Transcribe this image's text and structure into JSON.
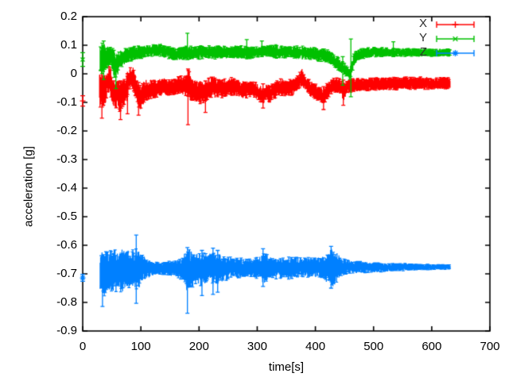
{
  "figure": {
    "background": "#ffffff",
    "frame_color": "#000000"
  },
  "chart_data": {
    "type": "scatter",
    "style": "errorbars",
    "title": "",
    "xlabel": "time[s]",
    "ylabel": "acceleration [g]",
    "xlim": [
      0,
      700
    ],
    "ylim": [
      -0.9,
      0.2
    ],
    "xticks": [
      0,
      100,
      200,
      300,
      400,
      500,
      600,
      700
    ],
    "xtick_labels": [
      "0",
      "100",
      "200",
      "300",
      "400",
      "500",
      "600",
      "700"
    ],
    "yticks": [
      0.2,
      0.1,
      0,
      -0.1,
      -0.2,
      -0.3,
      -0.4,
      -0.5,
      -0.6,
      -0.7,
      -0.8,
      -0.9
    ],
    "ytick_labels": [
      "0.2",
      "0.1",
      "0",
      "-0.1",
      "-0.2",
      "-0.3",
      "-0.4",
      "-0.5",
      "-0.6",
      "-0.7",
      "-0.8",
      "-0.9"
    ],
    "grid": false,
    "legend": {
      "position": "inside-top-right"
    },
    "series": [
      {
        "name": "X",
        "color": "#ff0000",
        "marker": "plus",
        "start_point": {
          "t": 0,
          "value": -0.095,
          "err": 0.018
        },
        "envelope": [
          [
            29,
            -0.12,
            0.0
          ],
          [
            33,
            -0.13,
            0.01
          ],
          [
            38,
            -0.12,
            -0.005
          ],
          [
            43,
            -0.065,
            0.03
          ],
          [
            47,
            -0.08,
            0.033
          ],
          [
            51,
            -0.115,
            -0.01
          ],
          [
            56,
            -0.13,
            -0.02
          ],
          [
            60,
            -0.12,
            -0.012
          ],
          [
            65,
            -0.14,
            -0.03
          ],
          [
            70,
            -0.12,
            -0.02
          ],
          [
            75,
            -0.1,
            -0.002
          ],
          [
            80,
            -0.062,
            0.028
          ],
          [
            86,
            -0.052,
            0.033
          ],
          [
            91,
            -0.09,
            -0.002
          ],
          [
            96,
            -0.12,
            -0.03
          ],
          [
            100,
            -0.128,
            -0.04
          ],
          [
            106,
            -0.1,
            -0.022
          ],
          [
            113,
            -0.09,
            -0.02
          ],
          [
            121,
            -0.086,
            -0.02
          ],
          [
            130,
            -0.08,
            -0.018
          ],
          [
            140,
            -0.076,
            -0.015
          ],
          [
            150,
            -0.08,
            -0.02
          ],
          [
            160,
            -0.074,
            -0.012
          ],
          [
            170,
            -0.07,
            -0.006
          ],
          [
            178,
            -0.08,
            0.0
          ],
          [
            182,
            -0.1,
            0.015
          ],
          [
            187,
            -0.092,
            -0.01
          ],
          [
            193,
            -0.1,
            -0.02
          ],
          [
            200,
            -0.105,
            -0.022
          ],
          [
            208,
            -0.11,
            -0.03
          ],
          [
            216,
            -0.092,
            -0.012
          ],
          [
            224,
            -0.08,
            -0.006
          ],
          [
            232,
            -0.09,
            -0.02
          ],
          [
            240,
            -0.086,
            -0.016
          ],
          [
            249,
            -0.08,
            -0.018
          ],
          [
            257,
            -0.076,
            -0.01
          ],
          [
            265,
            -0.08,
            -0.02
          ],
          [
            273,
            -0.088,
            -0.022
          ],
          [
            281,
            -0.086,
            -0.024
          ],
          [
            290,
            -0.08,
            -0.02
          ],
          [
            298,
            -0.088,
            -0.03
          ],
          [
            305,
            -0.1,
            -0.04
          ],
          [
            311,
            -0.106,
            -0.046
          ],
          [
            316,
            -0.092,
            -0.032
          ],
          [
            321,
            -0.1,
            -0.04
          ],
          [
            326,
            -0.094,
            -0.034
          ],
          [
            333,
            -0.082,
            -0.022
          ],
          [
            341,
            -0.076,
            -0.016
          ],
          [
            350,
            -0.08,
            -0.02
          ],
          [
            360,
            -0.076,
            -0.018
          ],
          [
            369,
            -0.062,
            -0.006
          ],
          [
            377,
            -0.046,
            0.018
          ],
          [
            384,
            -0.062,
            -0.012
          ],
          [
            391,
            -0.08,
            -0.022
          ],
          [
            399,
            -0.09,
            -0.032
          ],
          [
            407,
            -0.1,
            -0.044
          ],
          [
            414,
            -0.11,
            -0.05
          ],
          [
            420,
            -0.092,
            -0.032
          ],
          [
            427,
            -0.072,
            -0.016
          ],
          [
            434,
            -0.066,
            -0.012
          ],
          [
            442,
            -0.07,
            -0.016
          ],
          [
            448,
            -0.096,
            -0.03
          ],
          [
            454,
            -0.072,
            -0.02
          ],
          [
            462,
            -0.066,
            -0.016
          ],
          [
            475,
            -0.062,
            -0.015
          ],
          [
            490,
            -0.06,
            -0.013
          ],
          [
            510,
            -0.059,
            -0.012
          ],
          [
            530,
            -0.058,
            -0.012
          ],
          [
            550,
            -0.056,
            -0.01
          ],
          [
            570,
            -0.055,
            -0.01
          ],
          [
            590,
            -0.055,
            -0.011
          ],
          [
            610,
            -0.055,
            -0.012
          ],
          [
            632,
            -0.055,
            -0.012
          ]
        ],
        "spikes": [
          [
            33,
            -0.155,
            0.01
          ],
          [
            65,
            -0.16,
            -0.025
          ],
          [
            77,
            -0.14,
            0.0
          ],
          [
            96,
            -0.145,
            -0.03
          ],
          [
            181,
            -0.178,
            0.017
          ],
          [
            211,
            -0.135,
            -0.025
          ],
          [
            310,
            -0.12,
            -0.035
          ],
          [
            414,
            -0.125,
            -0.045
          ],
          [
            448,
            -0.11,
            -0.022
          ]
        ]
      },
      {
        "name": "Y",
        "color": "#00c000",
        "marker": "cross",
        "start_point": {
          "t": 0,
          "value": 0.05,
          "err": 0.024
        },
        "envelope": [
          [
            30,
            0.0,
            0.105
          ],
          [
            36,
            0.0,
            0.11
          ],
          [
            42,
            0.02,
            0.1
          ],
          [
            48,
            0.03,
            0.096
          ],
          [
            54,
            -0.015,
            0.085
          ],
          [
            58,
            -0.02,
            0.075
          ],
          [
            63,
            0.015,
            0.08
          ],
          [
            70,
            0.03,
            0.088
          ],
          [
            78,
            0.038,
            0.092
          ],
          [
            86,
            0.045,
            0.096
          ],
          [
            95,
            0.05,
            0.098
          ],
          [
            105,
            0.055,
            0.1
          ],
          [
            115,
            0.058,
            0.102
          ],
          [
            125,
            0.062,
            0.106
          ],
          [
            133,
            0.06,
            0.11
          ],
          [
            142,
            0.056,
            0.1
          ],
          [
            152,
            0.05,
            0.094
          ],
          [
            162,
            0.048,
            0.09
          ],
          [
            172,
            0.05,
            0.094
          ],
          [
            180,
            0.046,
            0.1
          ],
          [
            190,
            0.05,
            0.096
          ],
          [
            200,
            0.05,
            0.1
          ],
          [
            212,
            0.054,
            0.1
          ],
          [
            225,
            0.05,
            0.098
          ],
          [
            238,
            0.054,
            0.1
          ],
          [
            250,
            0.052,
            0.096
          ],
          [
            262,
            0.055,
            0.1
          ],
          [
            275,
            0.052,
            0.098
          ],
          [
            288,
            0.05,
            0.098
          ],
          [
            300,
            0.058,
            0.095
          ],
          [
            312,
            0.064,
            0.098
          ],
          [
            325,
            0.055,
            0.104
          ],
          [
            338,
            0.05,
            0.1
          ],
          [
            352,
            0.054,
            0.1
          ],
          [
            365,
            0.052,
            0.098
          ],
          [
            378,
            0.05,
            0.098
          ],
          [
            392,
            0.048,
            0.094
          ],
          [
            405,
            0.044,
            0.092
          ],
          [
            418,
            0.04,
            0.088
          ],
          [
            428,
            0.03,
            0.078
          ],
          [
            437,
            0.015,
            0.062
          ],
          [
            446,
            0.0,
            0.045
          ],
          [
            454,
            -0.012,
            0.028
          ],
          [
            459,
            -0.022,
            0.018
          ],
          [
            463,
            -0.005,
            0.05
          ],
          [
            467,
            0.03,
            0.08
          ],
          [
            474,
            0.048,
            0.088
          ],
          [
            485,
            0.054,
            0.092
          ],
          [
            500,
            0.058,
            0.094
          ],
          [
            520,
            0.06,
            0.092
          ],
          [
            540,
            0.06,
            0.09
          ],
          [
            560,
            0.06,
            0.09
          ],
          [
            580,
            0.06,
            0.089
          ],
          [
            600,
            0.06,
            0.088
          ],
          [
            616,
            0.061,
            0.088
          ],
          [
            632,
            0.061,
            0.088
          ]
        ],
        "spikes": [
          [
            36,
            -0.02,
            0.115
          ],
          [
            57,
            -0.052,
            0.03
          ],
          [
            180,
            0.05,
            0.142
          ],
          [
            282,
            0.055,
            0.12
          ],
          [
            308,
            0.06,
            0.115
          ],
          [
            447,
            -0.04,
            0.06
          ],
          [
            461,
            -0.08,
            0.122
          ],
          [
            534,
            0.06,
            0.112
          ]
        ]
      },
      {
        "name": "Z",
        "color": "#0080ff",
        "marker": "star",
        "start_point": {
          "t": 0,
          "value": -0.714,
          "err": 0.012
        },
        "envelope": [
          [
            30,
            -0.775,
            -0.62
          ],
          [
            36,
            -0.78,
            -0.612
          ],
          [
            42,
            -0.775,
            -0.616
          ],
          [
            48,
            -0.77,
            -0.618
          ],
          [
            54,
            -0.766,
            -0.614
          ],
          [
            60,
            -0.762,
            -0.615
          ],
          [
            66,
            -0.764,
            -0.61
          ],
          [
            72,
            -0.758,
            -0.614
          ],
          [
            78,
            -0.752,
            -0.612
          ],
          [
            84,
            -0.754,
            -0.618
          ],
          [
            90,
            -0.75,
            -0.61
          ],
          [
            96,
            -0.758,
            -0.62
          ],
          [
            102,
            -0.728,
            -0.632
          ],
          [
            109,
            -0.718,
            -0.645
          ],
          [
            116,
            -0.71,
            -0.654
          ],
          [
            124,
            -0.706,
            -0.658
          ],
          [
            132,
            -0.702,
            -0.66
          ],
          [
            141,
            -0.704,
            -0.656
          ],
          [
            150,
            -0.706,
            -0.654
          ],
          [
            159,
            -0.71,
            -0.653
          ],
          [
            167,
            -0.716,
            -0.648
          ],
          [
            173,
            -0.73,
            -0.636
          ],
          [
            179,
            -0.758,
            -0.616
          ],
          [
            183,
            -0.768,
            -0.612
          ],
          [
            189,
            -0.748,
            -0.626
          ],
          [
            196,
            -0.73,
            -0.63
          ],
          [
            203,
            -0.748,
            -0.622
          ],
          [
            209,
            -0.74,
            -0.626
          ],
          [
            216,
            -0.722,
            -0.634
          ],
          [
            223,
            -0.74,
            -0.62
          ],
          [
            229,
            -0.744,
            -0.626
          ],
          [
            236,
            -0.722,
            -0.632
          ],
          [
            243,
            -0.73,
            -0.636
          ],
          [
            251,
            -0.72,
            -0.64
          ],
          [
            259,
            -0.716,
            -0.64
          ],
          [
            266,
            -0.72,
            -0.644
          ],
          [
            274,
            -0.716,
            -0.644
          ],
          [
            282,
            -0.712,
            -0.648
          ],
          [
            292,
            -0.71,
            -0.648
          ],
          [
            301,
            -0.718,
            -0.64
          ],
          [
            308,
            -0.728,
            -0.626
          ],
          [
            313,
            -0.734,
            -0.62
          ],
          [
            319,
            -0.722,
            -0.638
          ],
          [
            327,
            -0.716,
            -0.644
          ],
          [
            336,
            -0.72,
            -0.64
          ],
          [
            346,
            -0.716,
            -0.644
          ],
          [
            356,
            -0.72,
            -0.64
          ],
          [
            366,
            -0.715,
            -0.641
          ],
          [
            376,
            -0.712,
            -0.644
          ],
          [
            386,
            -0.714,
            -0.641
          ],
          [
            396,
            -0.711,
            -0.644
          ],
          [
            406,
            -0.714,
            -0.64
          ],
          [
            415,
            -0.72,
            -0.636
          ],
          [
            423,
            -0.738,
            -0.616
          ],
          [
            430,
            -0.744,
            -0.61
          ],
          [
            437,
            -0.73,
            -0.624
          ],
          [
            444,
            -0.712,
            -0.644
          ],
          [
            452,
            -0.702,
            -0.65
          ],
          [
            462,
            -0.697,
            -0.654
          ],
          [
            475,
            -0.699,
            -0.656
          ],
          [
            490,
            -0.696,
            -0.659
          ],
          [
            510,
            -0.694,
            -0.66
          ],
          [
            530,
            -0.691,
            -0.661
          ],
          [
            550,
            -0.69,
            -0.663
          ],
          [
            570,
            -0.688,
            -0.664
          ],
          [
            590,
            -0.686,
            -0.666
          ],
          [
            610,
            -0.685,
            -0.667
          ],
          [
            632,
            -0.684,
            -0.668
          ]
        ],
        "spikes": [
          [
            34,
            -0.814,
            -0.648
          ],
          [
            92,
            -0.803,
            -0.564
          ],
          [
            180,
            -0.838,
            -0.608
          ],
          [
            205,
            -0.776,
            -0.618
          ],
          [
            224,
            -0.772,
            -0.61
          ],
          [
            232,
            -0.764,
            -0.618
          ],
          [
            310,
            -0.744,
            -0.612
          ],
          [
            427,
            -0.75,
            -0.604
          ]
        ]
      }
    ]
  }
}
